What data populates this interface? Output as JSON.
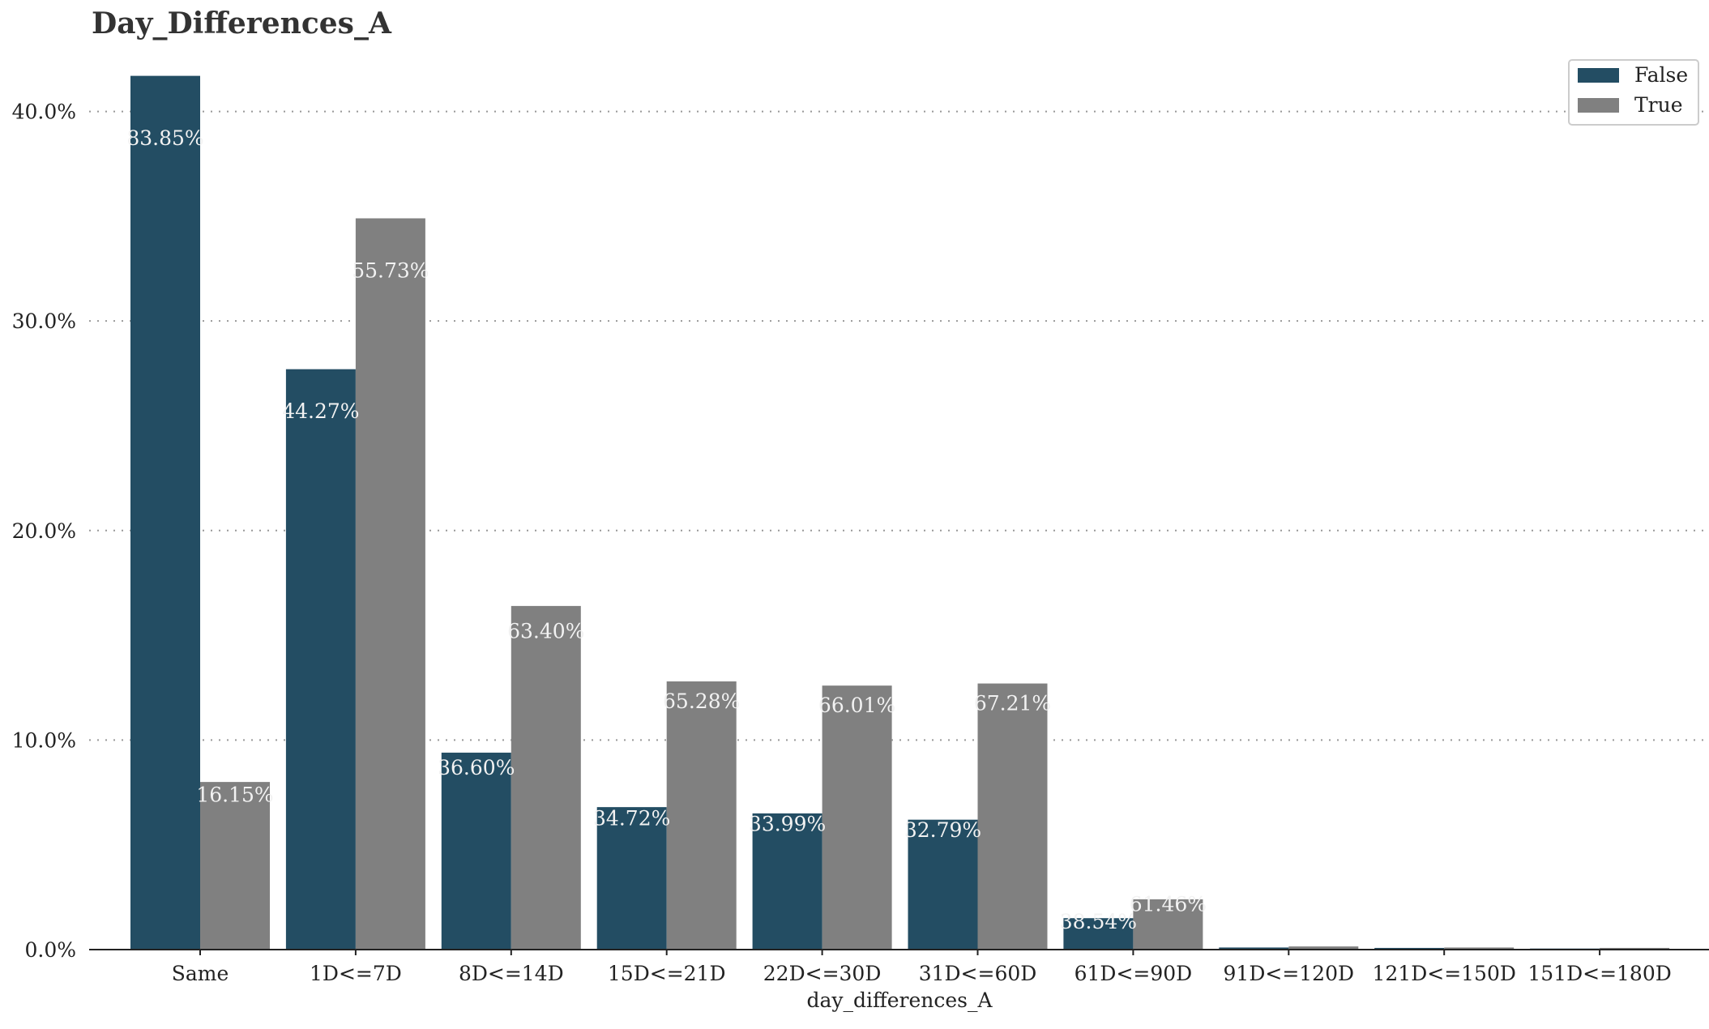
{
  "chart_data": {
    "type": "bar",
    "title": "Day_Differences_A",
    "xlabel": "day_differences_A",
    "ylabel": "",
    "categories": [
      "Same",
      "1D<=7D",
      "8D<=14D",
      "15D<=21D",
      "22D<=30D",
      "31D<=60D",
      "61D<=90D",
      "91D<=120D",
      "121D<=150D",
      "151D<=180D"
    ],
    "ylim": [
      0,
      0.43
    ],
    "yticks": [
      0,
      0.1,
      0.2,
      0.3,
      0.4
    ],
    "ytick_labels": [
      "0.0%",
      "10.0%",
      "20.0%",
      "30.0%",
      "40.0%"
    ],
    "grid": "y-dotted",
    "legend_position": "top-right",
    "series": [
      {
        "name": "False",
        "color": "#234d63",
        "values": [
          0.417,
          0.277,
          0.094,
          0.068,
          0.065,
          0.062,
          0.015,
          0.001,
          0.0008,
          0.0005
        ],
        "labels": [
          "83.85%",
          "44.27%",
          "36.60%",
          "34.72%",
          "33.99%",
          "32.79%",
          "38.54%",
          "",
          "",
          ""
        ]
      },
      {
        "name": "True",
        "color": "#808080",
        "values": [
          0.08,
          0.349,
          0.164,
          0.128,
          0.126,
          0.127,
          0.024,
          0.0015,
          0.001,
          0.0008
        ],
        "labels": [
          "16.15%",
          "55.73%",
          "63.40%",
          "65.28%",
          "66.01%",
          "67.21%",
          "61.46%",
          "",
          "",
          ""
        ]
      }
    ]
  }
}
